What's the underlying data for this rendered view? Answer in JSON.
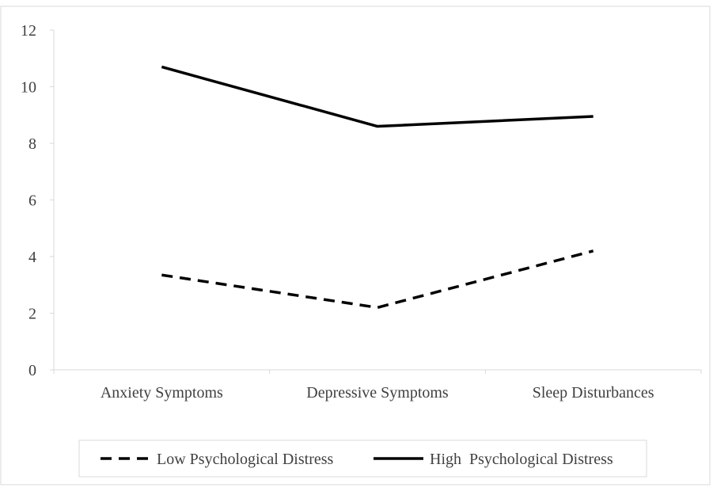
{
  "chart_data": {
    "type": "line",
    "title": "",
    "xlabel": "",
    "ylabel": "",
    "categories": [
      "Anxiety Symptoms",
      "Depressive Symptoms",
      "Sleep Disturbances"
    ],
    "ylim": [
      0,
      12
    ],
    "yticks": [
      "0",
      "2",
      "4",
      "6",
      "8",
      "10",
      "12"
    ],
    "grid": false,
    "legend_position": "bottom",
    "series": [
      {
        "name": "Low Psychological Distress",
        "values": [
          3.35,
          2.2,
          4.2
        ],
        "style": "dashed",
        "color": "#000000"
      },
      {
        "name": "High  Psychological Distress",
        "values": [
          10.7,
          8.6,
          8.95
        ],
        "style": "solid",
        "color": "#000000"
      }
    ]
  }
}
